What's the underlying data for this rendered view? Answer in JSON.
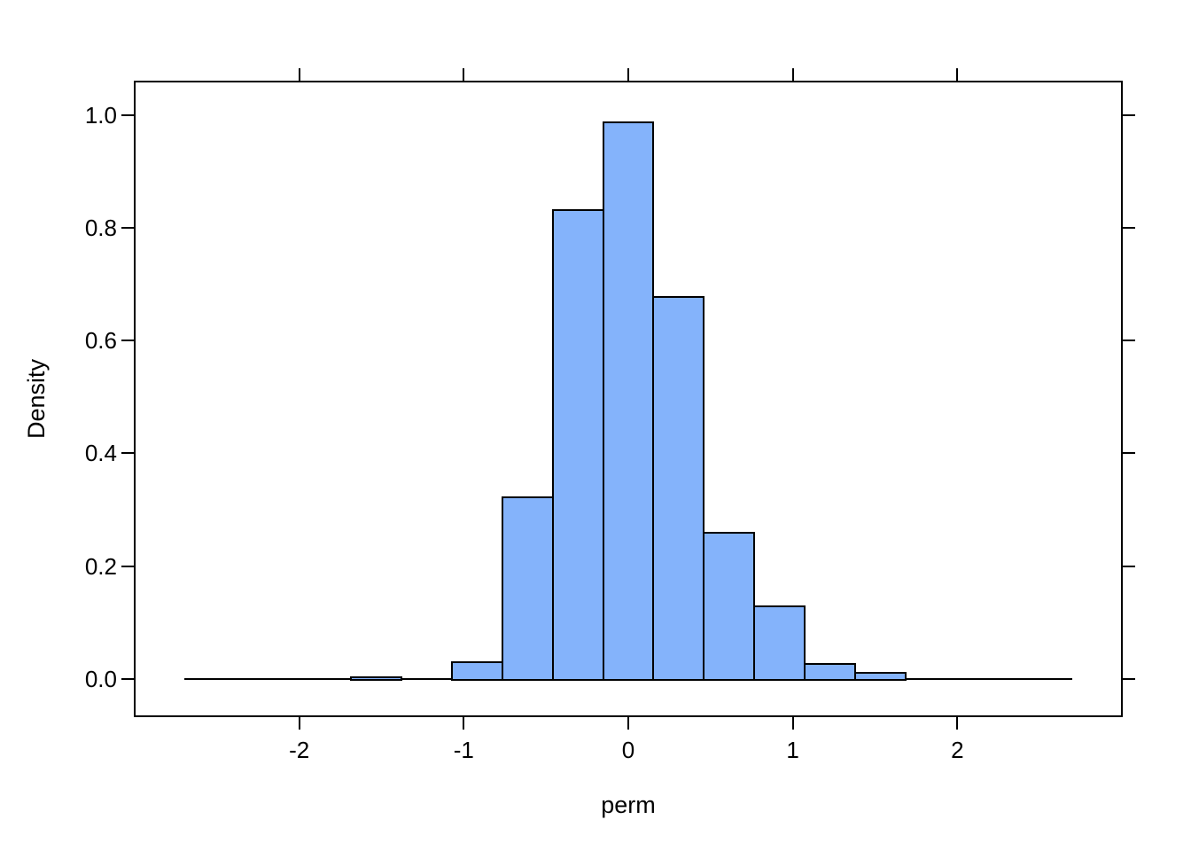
{
  "figure": {
    "background": "#ffffff"
  },
  "chart_data": {
    "type": "bar",
    "subtype": "histogram",
    "title": "",
    "xlabel": "perm",
    "ylabel": "Density",
    "xlim": [
      -3,
      3
    ],
    "ylim": [
      -0.065,
      1.06
    ],
    "grid": false,
    "legend": null,
    "x_ticks": [
      -2,
      -1,
      0,
      1,
      2
    ],
    "x_tick_labels": [
      "-2",
      "-1",
      "0",
      "1",
      "2"
    ],
    "y_ticks": [
      0,
      0.2,
      0.4,
      0.6,
      0.8,
      1.0
    ],
    "y_tick_labels": [
      "0.0",
      "0.2",
      "0.4",
      "0.6",
      "0.8",
      "1.0"
    ],
    "tick_sides": [
      "bottom",
      "left",
      "top",
      "right"
    ],
    "label_sides": [
      "bottom",
      "left"
    ],
    "bin_width": 0.307,
    "bins": [
      {
        "x0": -1.688,
        "x1": -1.381,
        "density": 0.003
      },
      {
        "x0": -1.381,
        "x1": -1.074,
        "density": 0.0
      },
      {
        "x0": -1.074,
        "x1": -0.767,
        "density": 0.029
      },
      {
        "x0": -0.767,
        "x1": -0.46,
        "density": 0.322
      },
      {
        "x0": -0.46,
        "x1": -0.153,
        "density": 0.832
      },
      {
        "x0": -0.153,
        "x1": 0.153,
        "density": 0.988
      },
      {
        "x0": 0.153,
        "x1": 0.46,
        "density": 0.677
      },
      {
        "x0": 0.46,
        "x1": 0.767,
        "density": 0.259
      },
      {
        "x0": 0.767,
        "x1": 1.074,
        "density": 0.129
      },
      {
        "x0": 1.074,
        "x1": 1.381,
        "density": 0.027
      },
      {
        "x0": 1.381,
        "x1": 1.688,
        "density": 0.011
      }
    ],
    "baseline": {
      "x0": -2.7,
      "x1": 2.7,
      "y": 0
    },
    "colors": {
      "bar_fill": "#84B3FB",
      "bar_stroke": "#000000",
      "axis": "#000000",
      "text": "#000000"
    }
  }
}
